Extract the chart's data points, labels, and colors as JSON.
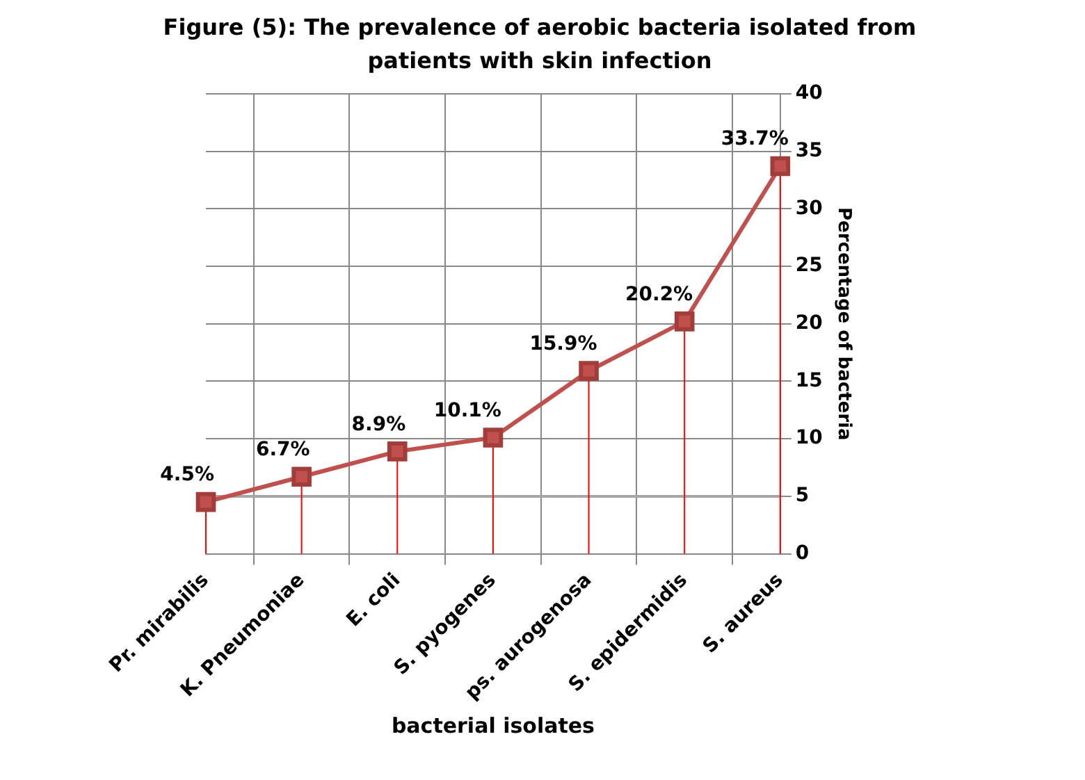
{
  "chart_data": {
    "type": "line",
    "title": "Figure (5): The prevalence of aerobic bacteria isolated from patients with skin  infection",
    "xlabel": "bacterial isolates",
    "ylabel": "Percentage of bacteria",
    "categories": [
      "Pr. mirabilis",
      "K. Pneumoniae",
      "E. coli",
      "S. pyogenes",
      "ps. aurogenosa",
      "S. epidermidis",
      "S. aureus"
    ],
    "series": [
      {
        "color": "#c0504d",
        "values": [
          4.5,
          6.7,
          8.9,
          10.1,
          15.9,
          20.2,
          33.7
        ],
        "value_labels": [
          "4.5%",
          "6.7%",
          "8.9%",
          "10.1%",
          "15.9%",
          "20.2%",
          "33.7%"
        ]
      }
    ],
    "ylim": [
      0,
      40
    ],
    "yticks": [
      0,
      5,
      10,
      15,
      20,
      25,
      30,
      35,
      40
    ],
    "grid": true,
    "legend": false,
    "marker": "square",
    "line_style": "solid",
    "ref_lines": [
      {
        "axis": "y",
        "value": 5,
        "color": "#a6a6a6"
      }
    ]
  }
}
